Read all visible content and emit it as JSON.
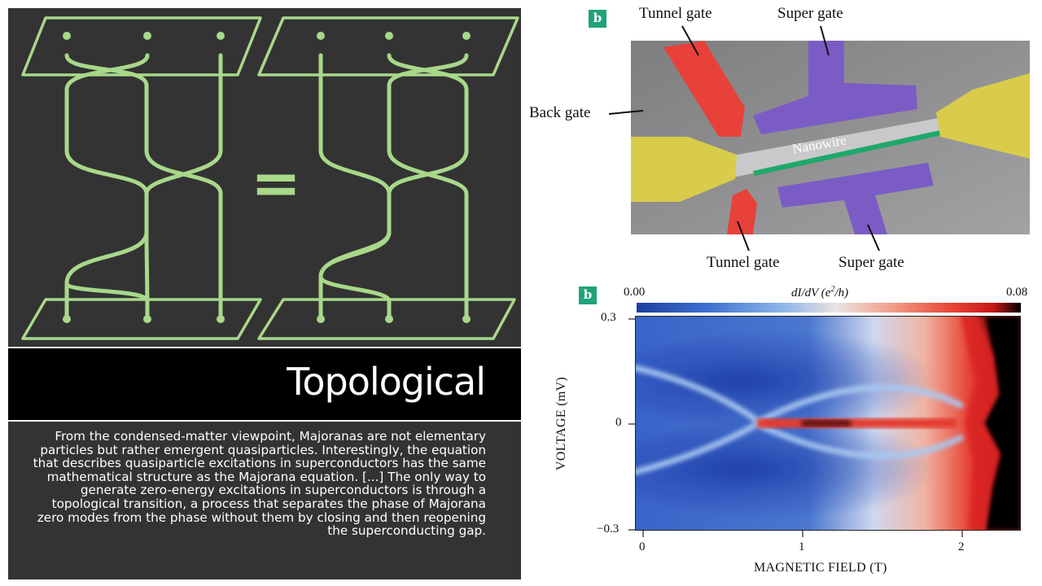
{
  "slide": {
    "title": "Topological",
    "body": "From the condensed-matter viewpoint, Majoranas are not elementary particles but rather emergent quasiparticles. Interestingly, the equation that describes quasiparticle excitations in superconductors has the same mathematical structure as the Majorana equation. [...] The only way to generate zero-energy excitations in superconductors is through a topological transition, a process that separates the phase of Majorana zero modes from the phase without them by closing and then reopening the superconducting gap."
  },
  "braid_figure": {
    "equals_sign": "=",
    "colors": {
      "background": "#333333",
      "strand": "#a8d88a"
    }
  },
  "device_figure": {
    "panel_label": "b",
    "labels": {
      "tunnel_gate_top": "Tunnel gate",
      "super_gate_top": "Super gate",
      "back_gate": "Back gate",
      "nanowire": "Nanowire",
      "tunnel_gate_bottom": "Tunnel gate",
      "super_gate_bottom": "Super gate"
    },
    "colors": {
      "tunnel_gate": "#e8413a",
      "super_gate": "#7b5cc4",
      "contact": "#d8cc4a",
      "nanowire_edge": "#1fa86a"
    }
  },
  "chart_data": {
    "type": "heatmap",
    "panel_label": "b",
    "xlabel": "MAGNETIC FIELD (T)",
    "ylabel": "VOLTAGE (mV)",
    "xlim": [
      0,
      2.4
    ],
    "ylim": [
      -0.3,
      0.3
    ],
    "x_ticks": [
      "0",
      "1",
      "2"
    ],
    "y_ticks": [
      "0.3",
      "0",
      "−0.3"
    ],
    "colorbar": {
      "label": "dI/dV (e²/h)",
      "label_parts": [
        "dI/dV (e",
        "2",
        "/h)"
      ],
      "min_label": "0.00",
      "max_label": "0.08",
      "range": [
        0.0,
        0.08
      ]
    },
    "features": {
      "gap_edge_at_zero_field_mV": 0.15,
      "zero_bias_peak_field_range_T": [
        0.75,
        1.95
      ],
      "gap_reopening_field_T": 1.95
    }
  }
}
